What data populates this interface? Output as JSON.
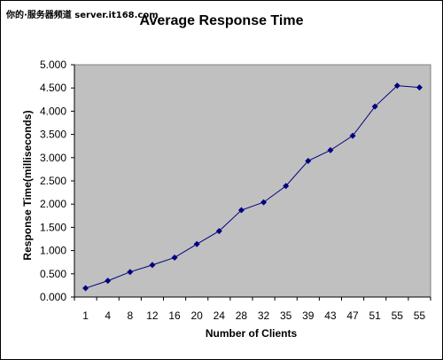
{
  "watermark": "你的·服务器频道 server.it168.com",
  "chart_data": {
    "type": "line",
    "title": "Average Response Time",
    "xlabel": "Number of Clients",
    "ylabel": "Response Time(milliseconds)",
    "categories": [
      "1",
      "4",
      "8",
      "12",
      "16",
      "20",
      "24",
      "28",
      "32",
      "35",
      "39",
      "43",
      "47",
      "51",
      "55",
      "55"
    ],
    "series": [
      {
        "values": [
          0.19,
          0.35,
          0.54,
          0.69,
          0.85,
          1.14,
          1.42,
          1.87,
          2.04,
          2.39,
          2.93,
          3.16,
          3.47,
          4.1,
          4.55,
          4.51
        ]
      }
    ],
    "ylim": [
      0,
      5
    ],
    "yticks": [
      "0.000",
      "0.500",
      "1.000",
      "1.500",
      "2.000",
      "2.500",
      "3.000",
      "3.500",
      "4.000",
      "4.500",
      "5.000"
    ],
    "grid": false,
    "legend": "none",
    "colors": {
      "plot_background": "#c0c0c0",
      "line": "#000080",
      "marker": "#000080"
    },
    "marker": "diamond"
  }
}
